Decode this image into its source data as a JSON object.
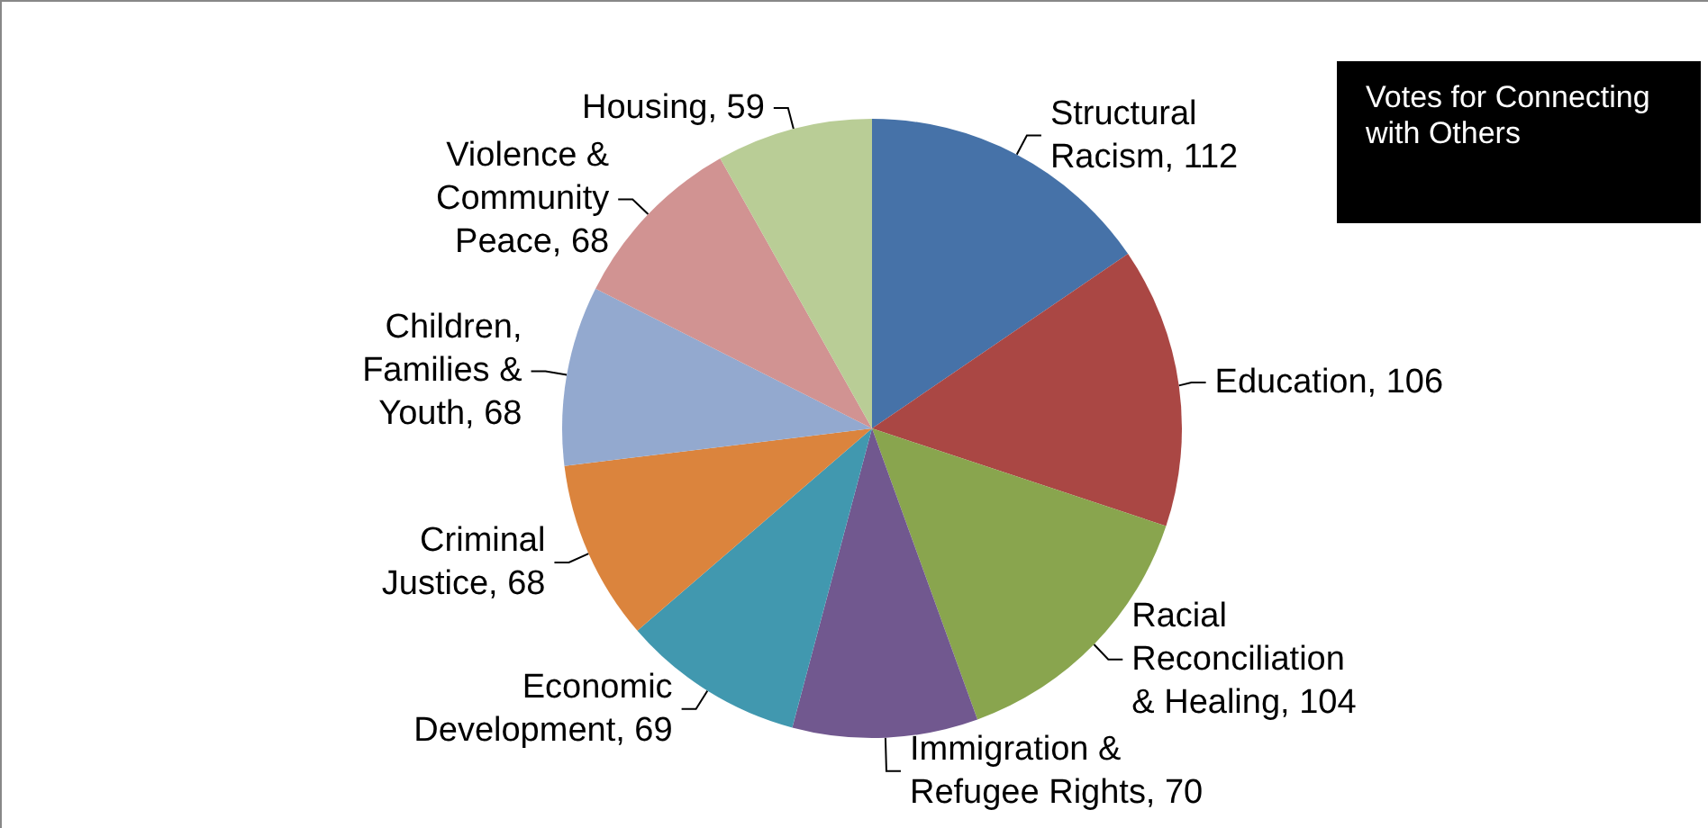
{
  "chart_data": {
    "type": "pie",
    "title": "Votes for Connecting with Others",
    "categories": [
      "Structural Racism",
      "Education",
      "Racial Reconciliation & Healing",
      "Immigration & Refugee Rights",
      "Economic Development",
      "Criminal Justice",
      "Children, Families & Youth",
      "Violence & Community Peace",
      "Housing"
    ],
    "values": [
      112,
      106,
      104,
      70,
      69,
      68,
      68,
      68,
      59
    ],
    "colors": [
      "#4672a8",
      "#aa4744",
      "#89a54e",
      "#71588f",
      "#4198af",
      "#db843d",
      "#93a9cf",
      "#d19392",
      "#b9cd96"
    ],
    "value_labels": [
      ", 112",
      ", 106",
      ", 104",
      ", 70",
      ", 69",
      ", 68",
      ", 68",
      ", 68",
      ", 59"
    ],
    "legend": false
  }
}
